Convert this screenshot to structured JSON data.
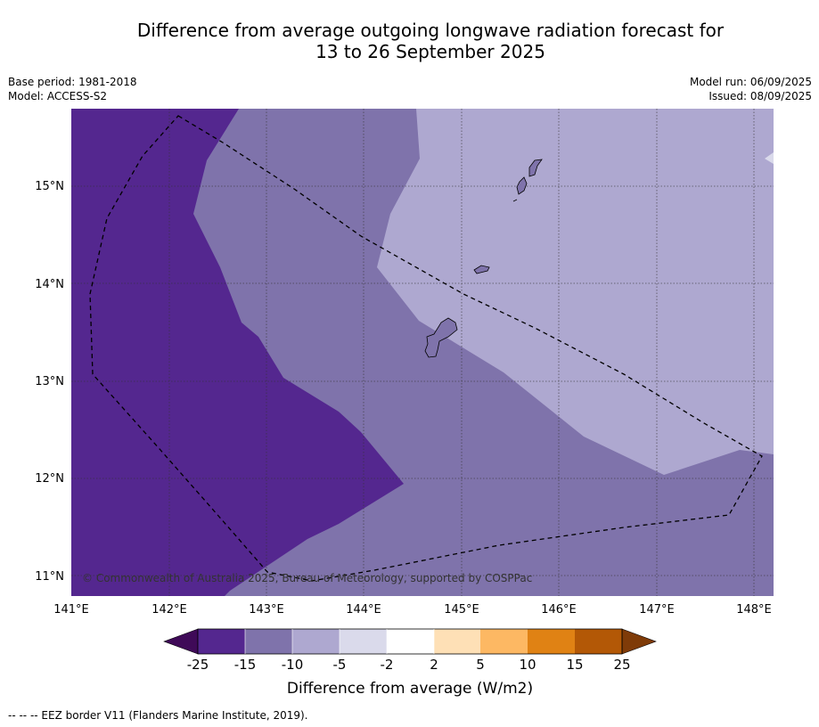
{
  "header": {
    "title_line1": "Difference from average outgoing longwave radiation forecast for",
    "title_line2": "13 to 26 September 2025",
    "base_period": "Base period: 1981-2018",
    "model": "Model: ACCESS-S2",
    "model_run": "Model run: 06/09/2025",
    "issued": "Issued: 08/09/2025"
  },
  "map": {
    "copyright": "© Commonwealth of Australia 2025, Bureau of Meteorology, supported by COSPPac",
    "lon_labels": [
      "141°E",
      "142°E",
      "143°E",
      "144°E",
      "145°E",
      "146°E",
      "147°E",
      "148°E"
    ],
    "lat_labels": [
      "15°N",
      "14°N",
      "13°N",
      "12°N",
      "11°N"
    ],
    "region_colors": {
      "minus_25_to_minus_15": "#54278f",
      "minus_15_to_minus_10": "#7f73ab",
      "minus_10_to_minus_5": "#aea8d0"
    }
  },
  "legend": {
    "label": "Difference from average (W/m2)",
    "ticks": [
      "-25",
      "-15",
      "-10",
      "-5",
      "-2",
      "2",
      "5",
      "10",
      "15",
      "25"
    ],
    "colors": [
      "#3f0a58",
      "#54278f",
      "#7f73ab",
      "#aea8d0",
      "#dadaeb",
      "#ffffff",
      "#fee0b6",
      "#fdb863",
      "#e08214",
      "#b35806",
      "#7f3b08"
    ]
  },
  "footer": {
    "eez_note": "--  --  -- EEZ border V11 (Flanders Marine Institute, 2019)."
  }
}
